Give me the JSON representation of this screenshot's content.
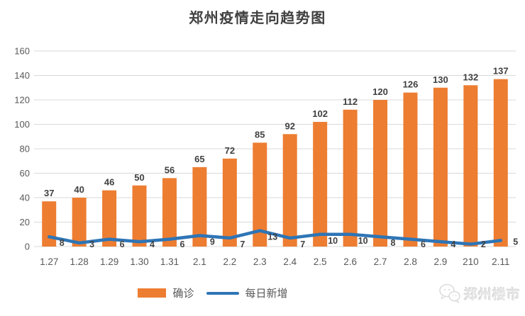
{
  "header": {
    "title": "郑州疫情走向趋势图"
  },
  "chart_data": {
    "type": "bar",
    "title": "郑州疫情走向趋势图",
    "categories": [
      "1.27",
      "1.28",
      "1.29",
      "1.30",
      "1.31",
      "2.1",
      "2.2",
      "2.3",
      "2.4",
      "2.5",
      "2.6",
      "2.7",
      "2.8",
      "2.9",
      "210",
      "2.11"
    ],
    "series": [
      {
        "name": "确诊",
        "type": "bar",
        "color": "#ED7D31",
        "values": [
          37,
          40,
          46,
          50,
          56,
          65,
          72,
          85,
          92,
          102,
          112,
          120,
          126,
          130,
          132,
          137
        ]
      },
      {
        "name": "每日新增",
        "type": "line",
        "color": "#2E75B6",
        "values": [
          8,
          3,
          6,
          4,
          6,
          9,
          7,
          13,
          7,
          10,
          10,
          8,
          6,
          4,
          2,
          5
        ]
      }
    ],
    "ylim": [
      0,
      160
    ],
    "yticks": [
      0,
      20,
      40,
      60,
      80,
      100,
      120,
      140,
      160
    ],
    "grid": true,
    "data_labels": true,
    "legend_position": "bottom"
  },
  "colors": {
    "bar": "#ED7D31",
    "line": "#2E75B6",
    "grid": "#D9D9D9",
    "axis_text": "#595959",
    "data_label": "#404040",
    "title_text": "#404040"
  },
  "legend": {
    "items": [
      {
        "label": "确诊"
      },
      {
        "label": "每日新增"
      }
    ]
  },
  "watermark": {
    "icon": "wechat-bubbles-icon",
    "text": "郑州楼市"
  }
}
